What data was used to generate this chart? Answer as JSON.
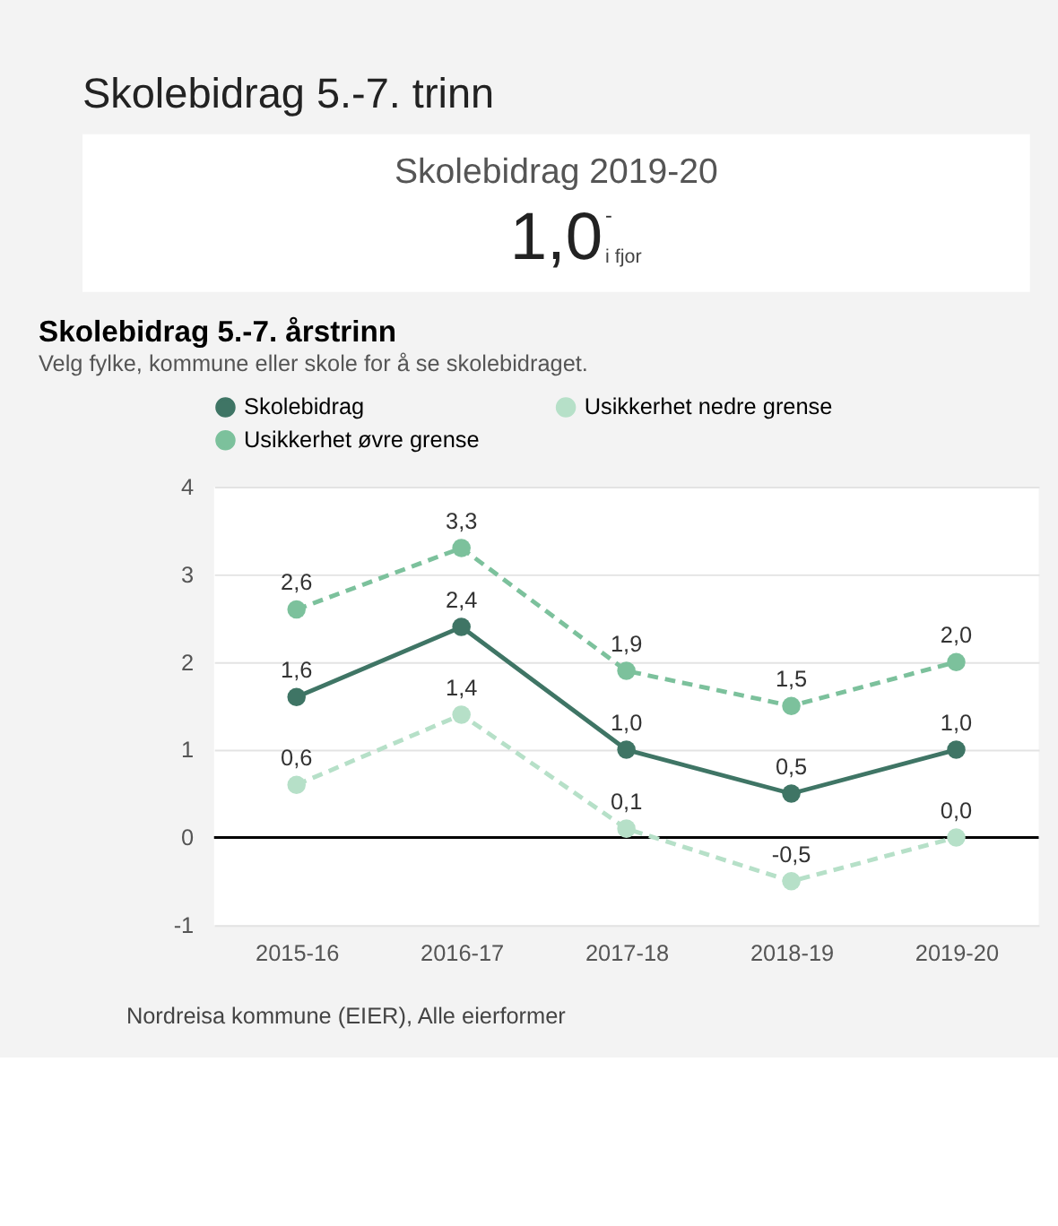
{
  "chart_data": {
    "type": "line",
    "title": "Skolebidrag 5.-7. årstrinn",
    "subtitle": "Velg fylke, kommune eller skole for å se skolebidraget.",
    "annotations": [
      "Skolebidrag 5.-7. trinn",
      "Skolebidrag 2019-20",
      "1,0",
      "-",
      "i fjor",
      "Nordreisa kommune (EIER), Alle eierformer"
    ],
    "categories": [
      "2015-16",
      "2016-17",
      "2017-18",
      "2018-19",
      "2019-20"
    ],
    "series": [
      {
        "name": "Skolebidrag",
        "color": "#3f7565",
        "line_style": "solid",
        "values": [
          1.6,
          2.4,
          1.0,
          0.5,
          1.0
        ],
        "value_labels": [
          "1,6",
          "2,4",
          "1,0",
          "0,5",
          "1,0"
        ]
      },
      {
        "name": "Usikkerhet nedre grense",
        "color": "#b6e0c8",
        "line_style": "dashed",
        "values": [
          0.6,
          1.4,
          0.1,
          -0.5,
          0.0
        ],
        "value_labels": [
          "0,6",
          "1,4",
          "0,1",
          "-0,5",
          "0,0"
        ]
      },
      {
        "name": "Usikkerhet øvre grense",
        "color": "#7cc19c",
        "line_style": "dashed",
        "values": [
          2.6,
          3.3,
          1.9,
          1.5,
          2.0
        ],
        "value_labels": [
          "2,6",
          "3,3",
          "1,9",
          "1,5",
          "2,0"
        ]
      }
    ],
    "ylim": [
      -1,
      4
    ],
    "yticks": [
      -1,
      0,
      1,
      2,
      3,
      4
    ],
    "grid": "y",
    "marker": "circle",
    "legend": "top",
    "ref_lines": [
      {
        "axis": "y",
        "value": 0,
        "color": "#000000"
      }
    ]
  }
}
